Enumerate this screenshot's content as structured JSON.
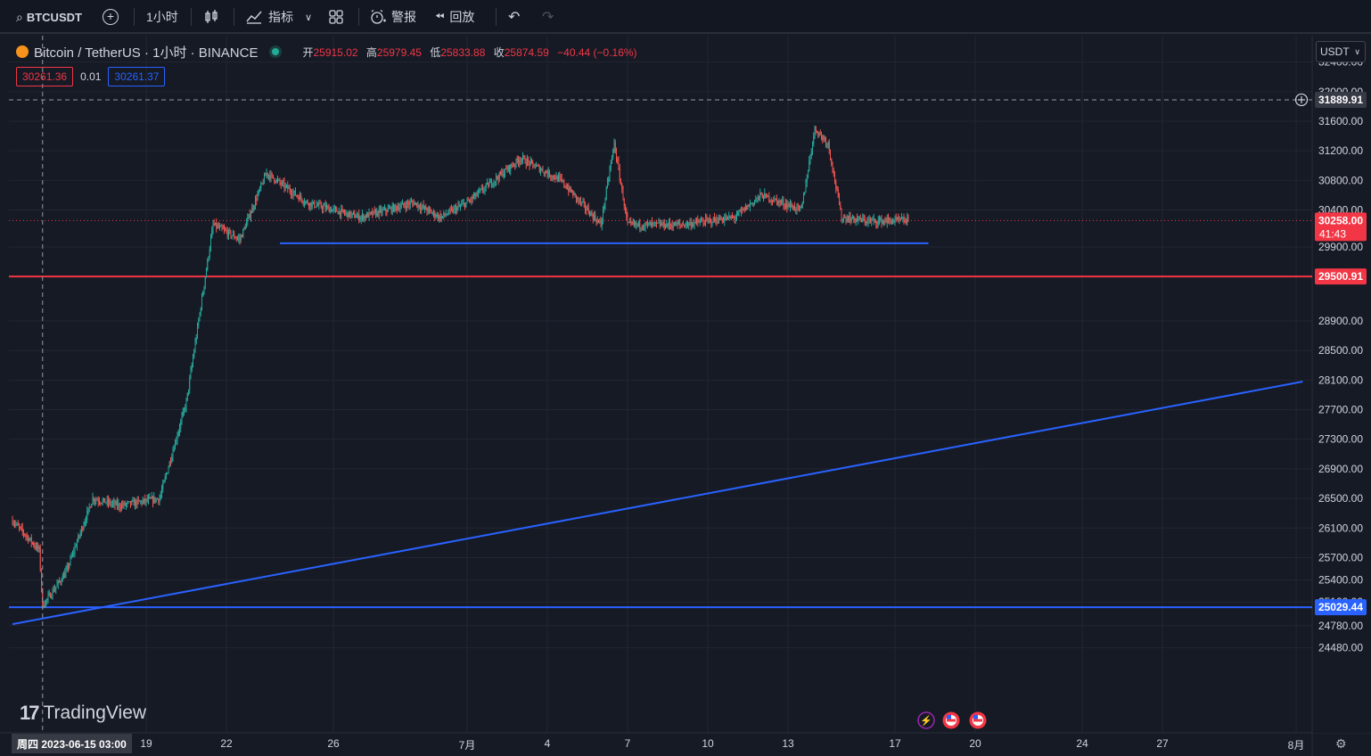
{
  "toolbar": {
    "symbol": "BTCUSDT",
    "interval": "1小时",
    "indicators_label": "指标",
    "alert_label": "警报",
    "replay_label": "回放"
  },
  "legend": {
    "title": "Bitcoin / TetherUS · 1小时 · BINANCE",
    "open_label": "开",
    "open": "25915.02",
    "high_label": "高",
    "high": "25979.45",
    "low_label": "低",
    "low": "25833.88",
    "close_label": "收",
    "close": "25874.59",
    "change": "−40.44 (−0.16%)"
  },
  "bidask": {
    "bid": "30261.36",
    "spread": "0.01",
    "ask": "30261.37"
  },
  "price_scale": {
    "currency": "USDT",
    "crosshair_price": "31889.91",
    "last_price": "30258.00",
    "countdown": "41:43",
    "hline_top": "29500.91",
    "hline_bottom": "25029.44"
  },
  "branding": {
    "logo_text": "TradingView"
  },
  "time_axis": {
    "cursor_label": "周四 2023-06-15   03:00"
  },
  "colors": {
    "up": "#26a69a",
    "down": "#ef5350",
    "blue": "#2962ff",
    "red": "#f23645",
    "background": "#161a25"
  },
  "chart_data": {
    "type": "candlestick",
    "title": "Bitcoin / TetherUS · 1小时 · BINANCE",
    "x_ticks": [
      "19",
      "22",
      "26",
      "7月",
      "4",
      "7",
      "10",
      "13",
      "17",
      "20",
      "24",
      "27",
      "8月"
    ],
    "y_ticks": [
      32400,
      32000,
      31600,
      31200,
      30800,
      30400,
      29900,
      29500,
      28900,
      28500,
      28100,
      27700,
      27300,
      26900,
      26500,
      26100,
      25700,
      25400,
      25100,
      24780,
      24480
    ],
    "ylim": [
      24300,
      32600
    ],
    "price_path": [
      {
        "date": "2023-06-14 00:00",
        "price": 26200
      },
      {
        "date": "2023-06-15 00:00",
        "price": 25800
      },
      {
        "date": "2023-06-15 03:00",
        "price": 25050
      },
      {
        "date": "2023-06-16 00:00",
        "price": 25500
      },
      {
        "date": "2023-06-17 00:00",
        "price": 26500
      },
      {
        "date": "2023-06-18 00:00",
        "price": 26400
      },
      {
        "date": "2023-06-19 12:00",
        "price": 26500
      },
      {
        "date": "2023-06-20 12:00",
        "price": 27800
      },
      {
        "date": "2023-06-21 00:00",
        "price": 29000
      },
      {
        "date": "2023-06-21 12:00",
        "price": 30200
      },
      {
        "date": "2023-06-22 12:00",
        "price": 30000
      },
      {
        "date": "2023-06-23 12:00",
        "price": 30900
      },
      {
        "date": "2023-06-25 00:00",
        "price": 30500
      },
      {
        "date": "2023-06-27 00:00",
        "price": 30300
      },
      {
        "date": "2023-06-29 00:00",
        "price": 30500
      },
      {
        "date": "2023-06-30 00:00",
        "price": 30300
      },
      {
        "date": "2023-07-01 00:00",
        "price": 30500
      },
      {
        "date": "2023-07-03 00:00",
        "price": 31100
      },
      {
        "date": "2023-07-04 12:00",
        "price": 30800
      },
      {
        "date": "2023-07-06 00:00",
        "price": 30200
      },
      {
        "date": "2023-07-06 12:00",
        "price": 31300
      },
      {
        "date": "2023-07-07 00:00",
        "price": 30200
      },
      {
        "date": "2023-07-09 00:00",
        "price": 30200
      },
      {
        "date": "2023-07-11 00:00",
        "price": 30300
      },
      {
        "date": "2023-07-12 00:00",
        "price": 30600
      },
      {
        "date": "2023-07-13 12:00",
        "price": 30400
      },
      {
        "date": "2023-07-14 00:00",
        "price": 31500
      },
      {
        "date": "2023-07-14 12:00",
        "price": 31300
      },
      {
        "date": "2023-07-15 00:00",
        "price": 30300
      },
      {
        "date": "2023-07-16 00:00",
        "price": 30250
      },
      {
        "date": "2023-07-17 12:00",
        "price": 30258
      }
    ],
    "horizontal_lines": [
      {
        "price": 29500.91,
        "color": "red"
      },
      {
        "price": 25029.44,
        "color": "blue"
      }
    ],
    "segments": [
      {
        "from": {
          "date": "2023-06-24 00:00",
          "price": 29950
        },
        "to": {
          "date": "2023-07-18 06:00",
          "price": 29950
        },
        "color": "blue"
      },
      {
        "from": {
          "date": "2023-06-14 00:00",
          "price": 24800
        },
        "to": {
          "date": "2023-08-01 06:00",
          "price": 28080
        },
        "color": "blue"
      }
    ],
    "grid": true
  }
}
